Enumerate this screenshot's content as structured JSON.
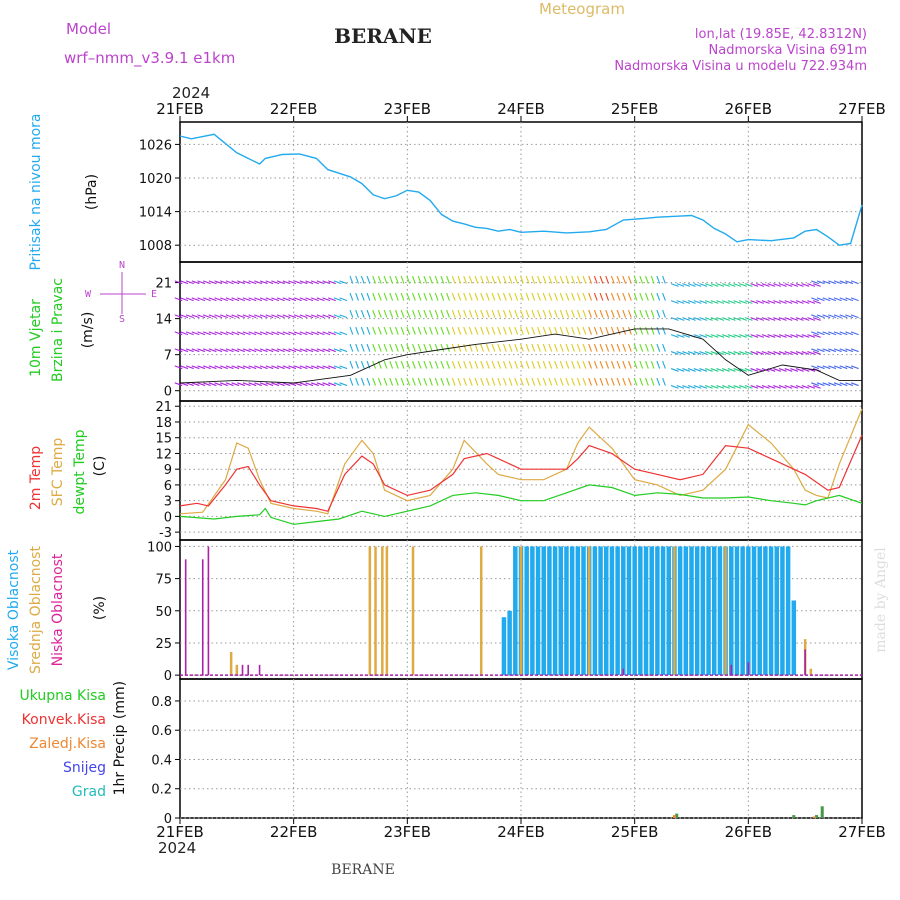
{
  "header": {
    "model_label": "Model",
    "model_name": "wrf–nmm_v3.9.1  e1km",
    "station": "BERANE",
    "meteogram": "Meteogram",
    "lonlat": "lon,lat (19.85E, 42.8312N)",
    "elev": "Nadmorska Visina 691m",
    "elev_model": "Nadmorska Visina u modelu 722.934m",
    "footer_station": "BERANE",
    "watermark": "made by Angel",
    "year": "2024"
  },
  "colors": {
    "pressure": "#22aaee",
    "temp2m": "#ee3333",
    "sfc": "#ddaa44",
    "dewpt": "#22cc22",
    "high_cloud": "#22aaee",
    "mid_cloud": "#ddaa44",
    "low_cloud": "#aa22aa",
    "purple_text": "#bb44cc",
    "green_text": "#22cc22",
    "orange_text": "#ee8833",
    "red_text": "#ee3333",
    "blue_text": "#4444ee",
    "cyan_text": "#22bbbb"
  },
  "chart_data": [
    {
      "id": "pressure",
      "type": "line",
      "ylabels": [
        "Pritisak na nivou mora",
        "(hPa)"
      ],
      "yticks": [
        1008,
        1014,
        1020,
        1026
      ],
      "ylim": [
        1005,
        1030
      ],
      "x_categories": [
        "21FEB",
        "22FEB",
        "23FEB",
        "24FEB",
        "25FEB",
        "26FEB",
        "27FEB"
      ],
      "series": [
        {
          "x": [
            0,
            0.1,
            0.3,
            0.5,
            0.7,
            0.75,
            0.9,
            1.05,
            1.2,
            1.3,
            1.5,
            1.6,
            1.7,
            1.8,
            1.9,
            2.0,
            2.1,
            2.2,
            2.3,
            2.4,
            2.5,
            2.6,
            2.7,
            2.8,
            2.9,
            3.0,
            3.2,
            3.4,
            3.6,
            3.75,
            3.9,
            4.1,
            4.2,
            4.4,
            4.5,
            4.6,
            4.7,
            4.8,
            4.9,
            5.0,
            5.2,
            5.4,
            5.5,
            5.6,
            5.7,
            5.8,
            5.9,
            6.0
          ],
          "y": [
            1027.5,
            1027,
            1027.8,
            1024.5,
            1022.5,
            1023.5,
            1024.2,
            1024.3,
            1023.5,
            1021.5,
            1020.2,
            1019,
            1017,
            1016.3,
            1016.8,
            1017.8,
            1017.5,
            1016,
            1013.5,
            1012.3,
            1011.8,
            1011.2,
            1011,
            1010.5,
            1010.8,
            1010.3,
            1010.5,
            1010.2,
            1010.4,
            1010.8,
            1012.5,
            1012.8,
            1013,
            1013.2,
            1013.3,
            1012.5,
            1011,
            1010,
            1008.6,
            1009,
            1008.8,
            1009.3,
            1010.5,
            1010.8,
            1009.5,
            1008,
            1008.3,
            1015.2
          ]
        }
      ]
    },
    {
      "id": "wind",
      "type": "line",
      "ylabels": [
        "10m Vjetar",
        "Brzina i Pravac",
        "(m/s)"
      ],
      "legend_compass": {
        "north": "N",
        "south": "S",
        "west": "W",
        "east": "E"
      },
      "yticks": [
        0,
        7,
        14,
        21
      ],
      "ylim": [
        -2,
        25
      ],
      "series": [
        {
          "name": "speed",
          "x": [
            0,
            0.5,
            1.0,
            1.5,
            1.8,
            2.0,
            2.3,
            2.6,
            3.0,
            3.3,
            3.6,
            4.0,
            4.3,
            4.6,
            4.8,
            5.0,
            5.3,
            5.6,
            5.8,
            6.0
          ],
          "y": [
            1.5,
            2,
            1.5,
            3,
            6,
            7,
            8,
            9,
            10,
            11,
            10,
            12,
            12,
            10,
            6,
            3,
            5,
            4,
            2,
            2
          ]
        }
      ]
    },
    {
      "id": "temperature",
      "type": "line",
      "ylabels": [
        "2m Temp",
        "SFC Temp",
        "dewpt Temp",
        "(C)"
      ],
      "yticks": [
        -3,
        0,
        3,
        6,
        9,
        12,
        15,
        18,
        21
      ],
      "ylim": [
        -4.5,
        22
      ],
      "series": [
        {
          "name": "2m Temp",
          "x": [
            0,
            0.15,
            0.25,
            0.4,
            0.5,
            0.6,
            0.7,
            0.8,
            1.0,
            1.2,
            1.3,
            1.45,
            1.6,
            1.7,
            1.8,
            2.0,
            2.2,
            2.4,
            2.5,
            2.7,
            2.8,
            3.0,
            3.2,
            3.4,
            3.5,
            3.6,
            3.8,
            4.0,
            4.2,
            4.4,
            4.6,
            4.8,
            5.0,
            5.2,
            5.4,
            5.5,
            5.7,
            5.8,
            6.0
          ],
          "y": [
            2,
            2.5,
            2,
            6,
            9,
            9.5,
            6,
            3,
            2,
            1.5,
            1,
            8,
            11.5,
            10,
            6,
            4,
            5,
            8,
            11,
            12,
            11,
            9,
            9,
            9,
            11,
            13.5,
            12,
            9,
            8,
            7,
            8,
            13.5,
            13,
            11,
            9,
            8,
            5,
            5.5,
            15.5
          ]
        },
        {
          "name": "SFC Temp",
          "x": [
            0,
            0.2,
            0.4,
            0.5,
            0.6,
            0.7,
            0.8,
            1.0,
            1.2,
            1.3,
            1.45,
            1.6,
            1.7,
            1.8,
            2.0,
            2.2,
            2.4,
            2.5,
            2.7,
            2.8,
            3.0,
            3.2,
            3.4,
            3.5,
            3.6,
            3.8,
            4.0,
            4.2,
            4.4,
            4.6,
            4.8,
            5.0,
            5.2,
            5.4,
            5.5,
            5.6,
            5.7,
            5.8,
            6.0
          ],
          "y": [
            0.5,
            0.8,
            7,
            14,
            13,
            7,
            2.5,
            1.5,
            1,
            0.5,
            10,
            14.5,
            12,
            5,
            3,
            4,
            9,
            14.5,
            10,
            8,
            7,
            7,
            9,
            14,
            17,
            13,
            7,
            6,
            4,
            5,
            9,
            17.5,
            14,
            9,
            5,
            4,
            3.5,
            10,
            20.5
          ]
        },
        {
          "name": "dewpt Temp",
          "x": [
            0,
            0.3,
            0.5,
            0.7,
            0.75,
            0.8,
            1.0,
            1.2,
            1.4,
            1.6,
            1.7,
            1.8,
            2.0,
            2.2,
            2.4,
            2.6,
            2.8,
            3.0,
            3.2,
            3.4,
            3.6,
            3.8,
            4.0,
            4.2,
            4.4,
            4.6,
            4.8,
            5.0,
            5.2,
            5.4,
            5.5,
            5.6,
            5.8,
            6.0
          ],
          "y": [
            0,
            -0.5,
            0,
            0.3,
            1.5,
            -0.2,
            -1.5,
            -1,
            -0.5,
            1,
            0.5,
            0,
            1,
            2,
            4,
            4.5,
            4,
            3,
            3,
            4.5,
            6,
            5.5,
            4,
            4.5,
            4.2,
            3.5,
            3.5,
            3.7,
            3,
            2.5,
            2.2,
            3,
            4,
            2.5
          ]
        }
      ]
    },
    {
      "id": "cloud",
      "type": "bar",
      "ylabels": [
        "Visoka Oblacnost",
        "Srednja Oblacnost",
        "Niska Oblacnost",
        "(%)"
      ],
      "yticks": [
        0,
        25,
        50,
        75,
        100
      ],
      "ylim": [
        -3,
        105
      ],
      "series": [
        {
          "name": "Visoka Oblacnost",
          "x": [
            2.85,
            2.9,
            2.95,
            3.0,
            3.05,
            3.1,
            3.15,
            3.2,
            3.25,
            3.3,
            3.35,
            3.4,
            3.45,
            3.5,
            3.55,
            3.6,
            3.65,
            3.7,
            3.75,
            3.8,
            3.85,
            3.9,
            3.95,
            4.0,
            4.05,
            4.1,
            4.15,
            4.2,
            4.25,
            4.3,
            4.35,
            4.4,
            4.45,
            4.5,
            4.55,
            4.6,
            4.65,
            4.7,
            4.75,
            4.8,
            4.85,
            4.9,
            4.95,
            5.0,
            5.05,
            5.1,
            5.15,
            5.2,
            5.25,
            5.3,
            5.35,
            5.4
          ],
          "y": [
            45,
            50,
            100,
            100,
            100,
            100,
            100,
            100,
            100,
            100,
            100,
            100,
            100,
            100,
            100,
            100,
            100,
            100,
            100,
            100,
            100,
            100,
            100,
            100,
            100,
            100,
            100,
            100,
            100,
            100,
            100,
            100,
            100,
            100,
            100,
            100,
            100,
            100,
            100,
            100,
            100,
            100,
            100,
            100,
            100,
            100,
            100,
            100,
            100,
            100,
            100,
            58
          ]
        },
        {
          "name": "Srednja Oblacnost",
          "x": [
            0.45,
            0.5,
            1.67,
            1.72,
            1.78,
            1.82,
            2.05,
            2.65,
            3.0,
            3.6,
            4.35,
            4.8,
            5.5,
            5.55
          ],
          "y": [
            18,
            8,
            100,
            100,
            100,
            100,
            100,
            100,
            100,
            100,
            100,
            100,
            28,
            5
          ]
        },
        {
          "name": "Niska Oblacnost",
          "x": [
            0.05,
            0.2,
            0.25,
            0.55,
            0.6,
            0.7,
            3.9,
            4.85,
            5.0,
            5.5
          ],
          "y": [
            90,
            90,
            100,
            8,
            8,
            8,
            5,
            8,
            10,
            20
          ]
        }
      ]
    },
    {
      "id": "precip",
      "type": "bar",
      "ylabels": [
        "1hr Precip",
        "(mm)"
      ],
      "yticks": [
        0,
        0.2,
        0.4,
        0.6,
        0.8
      ],
      "ylim": [
        0,
        0.95
      ],
      "legend": [
        {
          "name": "Ukupna Kisa",
          "color": "#22cc22"
        },
        {
          "name": "Konvek.Kisa",
          "color": "#ee3333"
        },
        {
          "name": "Zaledj.Kisa",
          "color": "#ee8833"
        },
        {
          "name": "Snijeg",
          "color": "#4444ee"
        },
        {
          "name": "Grad",
          "color": "#22bbbb"
        }
      ],
      "series": [
        {
          "name": "Ukupna Kisa",
          "x": [
            4.37,
            5.4,
            5.6,
            5.65
          ],
          "y": [
            0.03,
            0.02,
            0.02,
            0.08
          ]
        },
        {
          "name": "Zaledj.Kisa",
          "x": [
            4.35,
            5.58
          ],
          "y": [
            0.02,
            0.01
          ]
        }
      ]
    }
  ]
}
